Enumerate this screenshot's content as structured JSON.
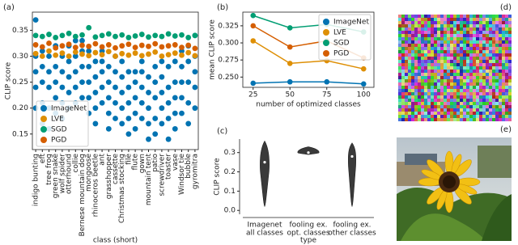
{
  "chart_data": [
    {
      "type": "strip",
      "panel_label": "(a)",
      "ylabel": "CLIP score",
      "xlabel": "class (short)",
      "categories": [
        "indigo bunting",
        "eft",
        "tree frog",
        "green snake",
        "wolf spider",
        "otterhound",
        "collie",
        "Bernese mountain dog",
        "mongoose",
        "rhinoceros beetle",
        "ant",
        "grasshopper",
        "cassette",
        "Christmas stocking",
        "file",
        "flute",
        "gown",
        "mountain tent",
        "patio",
        "screwdriver",
        "toaster",
        "vase",
        "Windsor tie",
        "bubble",
        "gyromitra"
      ],
      "ylim": [
        0.12,
        0.385
      ],
      "yticks": [
        {
          "value": 0.15,
          "label": "0.15"
        },
        {
          "value": 0.2,
          "label": "0.20"
        },
        {
          "value": 0.25,
          "label": "0.25"
        },
        {
          "value": 0.3,
          "label": "0.30"
        },
        {
          "value": 0.35,
          "label": "0.35"
        }
      ],
      "legend": "lower left",
      "series": [
        {
          "name": "ImageNet",
          "color": "#0173b2",
          "values": [
            [
              0.2,
              0.24,
              0.27,
              0.3,
              0.37
            ],
            [
              0.17,
              0.21,
              0.25,
              0.28,
              0.31
            ],
            [
              0.16,
              0.2,
              0.24,
              0.27,
              0.3
            ],
            [
              0.19,
              0.22,
              0.25,
              0.28,
              0.32
            ],
            [
              0.18,
              0.21,
              0.24,
              0.27,
              0.3
            ],
            [
              0.2,
              0.23,
              0.26,
              0.29,
              0.32
            ],
            [
              0.21,
              0.24,
              0.27,
              0.3,
              0.33
            ],
            [
              0.22,
              0.25,
              0.28,
              0.31,
              0.33
            ],
            [
              0.19,
              0.22,
              0.25,
              0.28,
              0.31
            ],
            [
              0.17,
              0.2,
              0.23,
              0.26,
              0.29
            ],
            [
              0.21,
              0.24,
              0.27,
              0.29,
              0.31
            ],
            [
              0.16,
              0.19,
              0.22,
              0.25,
              0.28
            ],
            [
              0.18,
              0.21,
              0.24,
              0.27,
              0.3
            ],
            [
              0.17,
              0.2,
              0.23,
              0.26,
              0.29
            ],
            [
              0.15,
              0.18,
              0.21,
              0.24,
              0.27
            ],
            [
              0.16,
              0.19,
              0.22,
              0.25,
              0.27
            ],
            [
              0.18,
              0.21,
              0.24,
              0.27,
              0.29
            ],
            [
              0.14,
              0.17,
              0.2,
              0.23,
              0.26
            ],
            [
              0.15,
              0.18,
              0.22,
              0.25,
              0.28
            ],
            [
              0.17,
              0.2,
              0.23,
              0.26,
              0.29
            ],
            [
              0.14,
              0.18,
              0.21,
              0.24,
              0.28
            ],
            [
              0.16,
              0.19,
              0.22,
              0.25,
              0.29
            ],
            [
              0.19,
              0.22,
              0.25,
              0.28,
              0.31
            ],
            [
              0.17,
              0.21,
              0.25,
              0.29,
              0.32
            ],
            [
              0.2,
              0.24,
              0.27,
              0.3,
              0.34
            ]
          ]
        },
        {
          "name": "LVE",
          "color": "#de8f05",
          "values": [
            0.305,
            0.3,
            0.31,
            0.302,
            0.306,
            0.3,
            0.308,
            0.304,
            0.301,
            0.307,
            0.303,
            0.309,
            0.3,
            0.305,
            0.302,
            0.306,
            0.301,
            0.304,
            0.308,
            0.3,
            0.303,
            0.306,
            0.302,
            0.307,
            0.301
          ]
        },
        {
          "name": "SGD",
          "color": "#029e73",
          "values": [
            0.34,
            0.338,
            0.342,
            0.336,
            0.34,
            0.344,
            0.338,
            0.341,
            0.355,
            0.337,
            0.34,
            0.343,
            0.338,
            0.341,
            0.336,
            0.339,
            0.342,
            0.337,
            0.34,
            0.338,
            0.343,
            0.339,
            0.341,
            0.336,
            0.34
          ]
        },
        {
          "name": "PGD",
          "color": "#d55e00",
          "values": [
            0.322,
            0.318,
            0.325,
            0.316,
            0.32,
            0.323,
            0.317,
            0.321,
            0.319,
            0.324,
            0.318,
            0.322,
            0.316,
            0.32,
            0.323,
            0.317,
            0.321,
            0.319,
            0.324,
            0.318,
            0.32,
            0.322,
            0.317,
            0.321,
            0.315
          ]
        }
      ]
    },
    {
      "type": "line",
      "panel_label": "(b)",
      "ylabel": "mean CLIP score",
      "xlabel": "number of optimized classes",
      "x": [
        25,
        50,
        75,
        100
      ],
      "xlim": [
        18,
        107
      ],
      "xticks": [
        25,
        50,
        75,
        100
      ],
      "ylim": [
        0.235,
        0.345
      ],
      "yticks": [
        {
          "value": 0.25,
          "label": "0.250"
        },
        {
          "value": 0.275,
          "label": "0.275"
        },
        {
          "value": 0.3,
          "label": "0.300"
        },
        {
          "value": 0.325,
          "label": "0.325"
        }
      ],
      "legend": "upper right",
      "series": [
        {
          "name": "ImageNet",
          "color": "#0173b2",
          "values": [
            0.241,
            0.243,
            0.243,
            0.24
          ]
        },
        {
          "name": "LVE",
          "color": "#de8f05",
          "values": [
            0.303,
            0.27,
            0.274,
            0.262
          ]
        },
        {
          "name": "SGD",
          "color": "#029e73",
          "values": [
            0.34,
            0.322,
            0.327,
            0.316
          ]
        },
        {
          "name": "PGD",
          "color": "#d55e00",
          "values": [
            0.325,
            0.294,
            0.303,
            0.278
          ]
        }
      ]
    },
    {
      "type": "violin",
      "panel_label": "(c)",
      "ylabel": "CLIP score",
      "xlabel": "type",
      "categories": [
        [
          "Imagenet",
          "all classes"
        ],
        [
          "fooling ex.",
          "opt. classes"
        ],
        [
          "fooling ex.",
          "other classes"
        ]
      ],
      "ylim": [
        -0.02,
        0.37
      ],
      "yticks": [
        {
          "value": 0,
          "label": "0.0"
        },
        {
          "value": 0.1,
          "label": "0.1"
        },
        {
          "value": 0.2,
          "label": "0.2"
        },
        {
          "value": 0.3,
          "label": "0.3"
        }
      ],
      "color": "#3a3a3a",
      "min": [
        0.02,
        0.29,
        0.02
      ],
      "median": [
        0.25,
        0.3,
        0.28
      ],
      "max": [
        0.36,
        0.33,
        0.35
      ]
    }
  ],
  "images": [
    {
      "label": "(d)"
    },
    {
      "label": "(e)"
    }
  ]
}
